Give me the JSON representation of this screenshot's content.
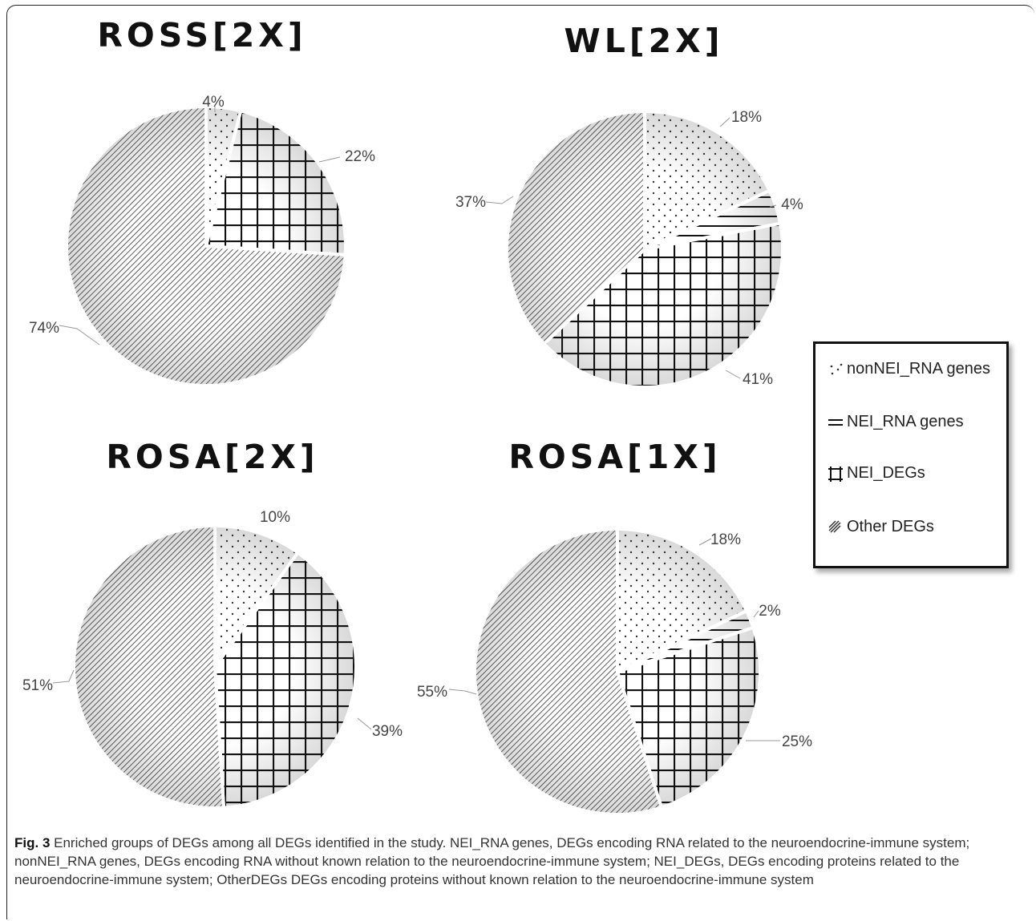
{
  "chart_data": [
    {
      "type": "pie",
      "title": "ROSS[2X]",
      "slices": [
        {
          "label": "nonNEI_RNA genes",
          "value": 4,
          "value_label": "4%"
        },
        {
          "label": "NEI_DEGs",
          "value": 22,
          "value_label": "22%"
        },
        {
          "label": "Other DEGs",
          "value": 74,
          "value_label": "74%"
        }
      ]
    },
    {
      "type": "pie",
      "title": "WL[2X]",
      "slices": [
        {
          "label": "nonNEI_RNA genes",
          "value": 18,
          "value_label": "18%"
        },
        {
          "label": "NEI_RNA genes",
          "value": 4,
          "value_label": "4%"
        },
        {
          "label": "NEI_DEGs",
          "value": 41,
          "value_label": "41%"
        },
        {
          "label": "Other DEGs",
          "value": 37,
          "value_label": "37%"
        }
      ]
    },
    {
      "type": "pie",
      "title": "ROSA[2X]",
      "slices": [
        {
          "label": "nonNEI_RNA genes",
          "value": 10,
          "value_label": "10%"
        },
        {
          "label": "NEI_DEGs",
          "value": 39,
          "value_label": "39%"
        },
        {
          "label": "Other DEGs",
          "value": 51,
          "value_label": "51%"
        }
      ]
    },
    {
      "type": "pie",
      "title": "ROSA[1X]",
      "slices": [
        {
          "label": "nonNEI_RNA genes",
          "value": 18,
          "value_label": "18%"
        },
        {
          "label": "NEI_RNA genes",
          "value": 2,
          "value_label": "2%"
        },
        {
          "label": "NEI_DEGs",
          "value": 25,
          "value_label": "25%"
        },
        {
          "label": "Other DEGs",
          "value": 55,
          "value_label": "55%"
        }
      ]
    }
  ],
  "legend": {
    "placement": "right",
    "items": [
      {
        "label": "nonNEI_RNA genes",
        "pattern": "dots"
      },
      {
        "label": "NEI_RNA genes",
        "pattern": "horizontal-lines"
      },
      {
        "label": "NEI_DEGs",
        "pattern": "grid"
      },
      {
        "label": "Other DEGs",
        "pattern": "diagonal-lines"
      }
    ]
  },
  "caption": {
    "label": "Fig. 3",
    "text": " Enriched groups of DEGs among all DEGs identified in the study. NEI_RNA genes, DEGs encoding RNA related to the neuroendocrine-immune system; nonNEI_RNA genes, DEGs encoding RNA without known relation to the neuroendocrine-immune system; NEI_DEGs, DEGs encoding proteins related to the neuroendocrine-immune system; OtherDEGs DEGs encoding proteins without known relation to the neuroendocrine-immune system"
  }
}
